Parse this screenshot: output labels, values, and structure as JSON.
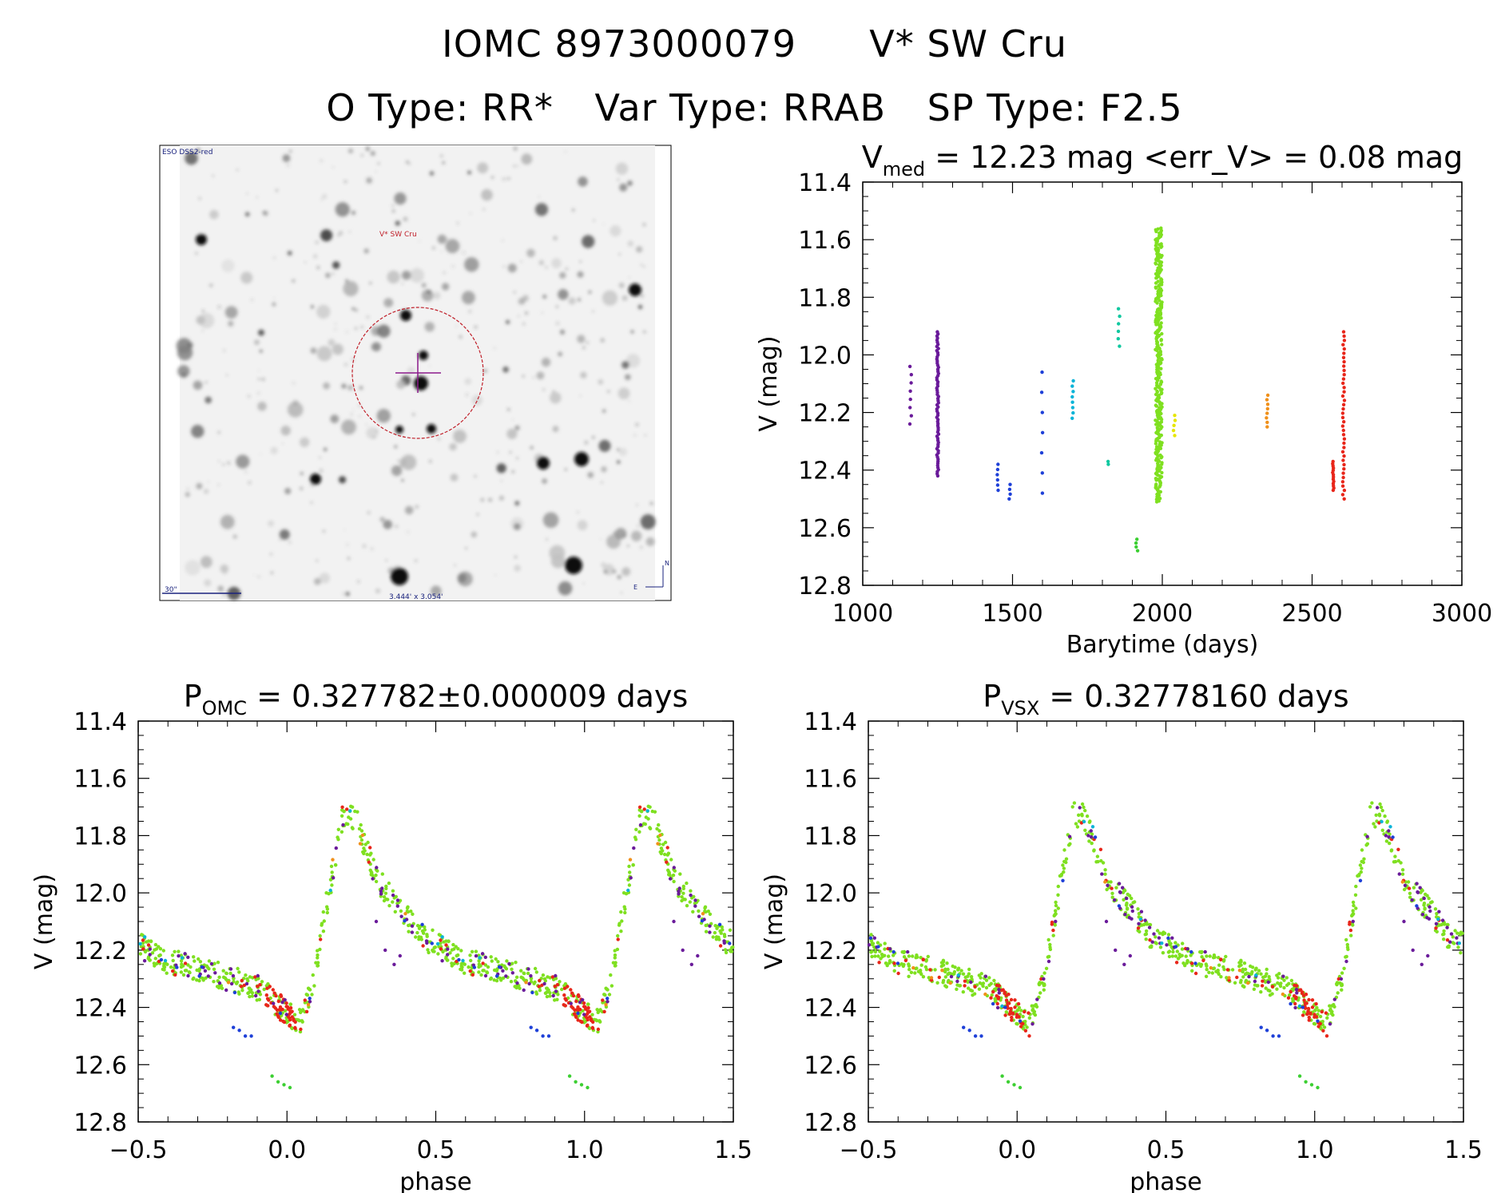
{
  "header": {
    "id_label": "IOMC 8973000079",
    "star_name": "V* SW Cru",
    "o_type": "O Type: RR*",
    "var_type": "Var Type: RRAB",
    "sp_type": "SP Type: F2.5"
  },
  "finder": {
    "survey_label": "ESO DSS2-red",
    "target_label": "V* SW Cru",
    "scale_label": "30\"",
    "fov_label": "3.444' x 3.054'",
    "north_label": "N",
    "east_label": "E"
  },
  "chart_data": [
    {
      "type": "scatter",
      "id": "lightcurve",
      "title_main": "V",
      "title_sub": "med",
      "title_rest": " = 12.23 mag <err_V> = 0.08 mag",
      "xlabel": "Barytime (days)",
      "ylabel": "V (mag)",
      "xlim": [
        1000,
        3000
      ],
      "ylim": [
        12.8,
        11.4
      ],
      "y_reversed": true,
      "xticks": [
        "1000",
        "1500",
        "2000",
        "2500",
        "3000"
      ],
      "yticks": [
        "11.4",
        "11.6",
        "11.8",
        "12.0",
        "12.2",
        "12.4",
        "12.6",
        "12.8"
      ],
      "series": [
        {
          "color": "#6a1b9a",
          "segments": [
            [
              1160,
              12.04,
              12.24,
              8
            ],
            [
              1250,
              11.92,
              12.42,
              70
            ]
          ]
        },
        {
          "color": "#1e40d8",
          "segments": [
            [
              1450,
              12.38,
              12.47,
              6
            ],
            [
              1490,
              12.45,
              12.5,
              4
            ],
            [
              1600,
              12.06,
              12.48,
              7
            ]
          ]
        },
        {
          "color": "#0ab4d8",
          "segments": [
            [
              1700,
              12.09,
              12.22,
              8
            ]
          ]
        },
        {
          "color": "#10c8a0",
          "segments": [
            [
              1820,
              12.37,
              12.38,
              2
            ],
            [
              1855,
              11.84,
              11.97,
              6
            ]
          ]
        },
        {
          "color": "#3ccf32",
          "segments": [
            [
              1915,
              12.64,
              12.68,
              4
            ]
          ]
        },
        {
          "color": "#7fe020",
          "segments": [
            [
              1988,
              11.56,
              12.51,
              330
            ]
          ]
        },
        {
          "color": "#e6e600",
          "segments": [
            [
              2040,
              12.21,
              12.28,
              5
            ]
          ]
        },
        {
          "color": "#f0901a",
          "segments": [
            [
              2350,
              12.14,
              12.25,
              8
            ]
          ]
        },
        {
          "color": "#e8261a",
          "segments": [
            [
              2570,
              12.37,
              12.47,
              14
            ],
            [
              2605,
              11.92,
              12.5,
              40
            ]
          ]
        }
      ]
    },
    {
      "type": "scatter",
      "id": "phase-omc",
      "title_main": "P",
      "title_sub": "OMC",
      "title_rest": " = 0.327782±0.000009 days",
      "xlabel": "phase",
      "ylabel": "V (mag)",
      "xlim": [
        -0.5,
        1.5
      ],
      "ylim": [
        12.8,
        11.4
      ],
      "y_reversed": true,
      "xticks": [
        "−0.5",
        "0.0",
        "0.5",
        "1.0",
        "1.5"
      ],
      "yticks": [
        "11.4",
        "11.6",
        "11.8",
        "12.0",
        "12.2",
        "12.4",
        "12.6",
        "12.8"
      ],
      "curve": {
        "knots_phase": [
          0.0,
          0.04,
          0.09,
          0.14,
          0.19,
          0.23,
          0.3,
          0.45,
          0.6,
          0.75,
          0.9,
          1.0
        ],
        "knots_mag": [
          12.42,
          12.46,
          12.3,
          12.0,
          11.72,
          11.74,
          11.95,
          12.15,
          12.24,
          12.28,
          12.33,
          12.42
        ]
      }
    },
    {
      "type": "scatter",
      "id": "phase-vsx",
      "title_main": "P",
      "title_sub": "VSX",
      "title_rest": " = 0.32778160 days",
      "xlabel": "phase",
      "ylabel": "V (mag)",
      "xlim": [
        -0.5,
        1.5
      ],
      "ylim": [
        12.8,
        11.4
      ],
      "y_reversed": true,
      "xticks": [
        "−0.5",
        "0.0",
        "0.5",
        "1.0",
        "1.5"
      ],
      "yticks": [
        "11.4",
        "11.6",
        "11.8",
        "12.0",
        "12.2",
        "12.4",
        "12.6",
        "12.8"
      ],
      "curve": {
        "knots_phase": [
          0.0,
          0.04,
          0.09,
          0.14,
          0.19,
          0.23,
          0.3,
          0.45,
          0.6,
          0.75,
          0.9,
          1.0
        ],
        "knots_mag": [
          12.42,
          12.46,
          12.3,
          12.0,
          11.72,
          11.74,
          11.95,
          12.15,
          12.24,
          12.28,
          12.33,
          12.42
        ]
      }
    }
  ]
}
